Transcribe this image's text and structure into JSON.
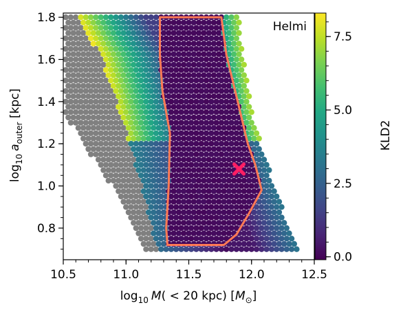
{
  "chart_data": {
    "type": "heatmap",
    "annotation": "Helmi",
    "xlabel": {
      "base": "log",
      "sub": "10",
      "italic": "M",
      "rest": "( < 20 kpc) [",
      "unit": "M",
      "unit_sub": "⊙",
      "close": "]"
    },
    "ylabel": {
      "base": "log",
      "sub": "10",
      "italic": "a",
      "italic_sub": "outer",
      "rest": " [kpc]"
    },
    "colorbar_label": "KLD2",
    "xlim": [
      10.5,
      12.5
    ],
    "ylim": [
      0.65,
      1.82
    ],
    "x_ticks": [
      "10.5",
      "11.0",
      "11.5",
      "12.0",
      "12.5"
    ],
    "y_ticks": [
      "0.8",
      "1.0",
      "1.2",
      "1.4",
      "1.6",
      "1.8"
    ],
    "colorbar_range": [
      -0.1,
      8.3
    ],
    "colorbar_ticks": [
      "0.0",
      "2.5",
      "5.0",
      "7.5"
    ],
    "colormap": "viridis",
    "masked_color": "#808080",
    "grid": {
      "y_range": [
        0.7,
        1.8
      ],
      "x_step": 0.04,
      "y_step": 0.025,
      "valid_left_edge": [
        [
          0.7,
          11.25
        ],
        [
          1.05,
          11.1
        ],
        [
          1.35,
          10.95
        ],
        [
          1.62,
          10.8
        ],
        [
          1.8,
          10.6
        ]
      ],
      "grey_left_edge": [
        [
          0.7,
          11.15
        ],
        [
          1.0,
          10.88
        ],
        [
          1.35,
          10.5
        ],
        [
          1.8,
          10.5
        ]
      ],
      "right_edge": [
        [
          0.7,
          12.37
        ],
        [
          1.0,
          12.18
        ],
        [
          1.35,
          12.0
        ],
        [
          1.65,
          11.92
        ],
        [
          1.8,
          11.9
        ]
      ]
    },
    "contour_level": 0.5,
    "contour": [
      [
        11.27,
        1.8
      ],
      [
        11.76,
        1.8
      ],
      [
        11.8,
        1.62
      ],
      [
        11.87,
        1.45
      ],
      [
        11.93,
        1.3
      ],
      [
        11.97,
        1.2
      ],
      [
        12.03,
        1.1
      ],
      [
        12.08,
        0.98
      ],
      [
        11.98,
        0.87
      ],
      [
        11.88,
        0.77
      ],
      [
        11.78,
        0.72
      ],
      [
        11.33,
        0.72
      ],
      [
        11.32,
        0.8
      ],
      [
        11.34,
        1.0
      ],
      [
        11.35,
        1.25
      ],
      [
        11.29,
        1.45
      ],
      [
        11.27,
        1.62
      ]
    ],
    "marker": {
      "x": 11.9,
      "y": 1.08,
      "symbol": "X",
      "color": "#ff1e64"
    },
    "contour_color": "#ff7a55"
  }
}
